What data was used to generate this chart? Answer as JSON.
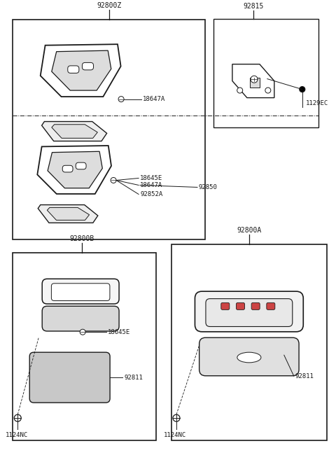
{
  "bg_color": "#ffffff",
  "lc": "#1a1a1a",
  "tc": "#1a1a1a",
  "fs_label": 6.5,
  "fs_title": 7.0,
  "labels": {
    "main_title": "92800Z",
    "part_18645E": "18645E",
    "part_18647A": "18647A",
    "part_92850": "92850",
    "part_92852A": "92852A",
    "part_92800B": "92800B",
    "part_92800A": "92800A",
    "part_92811": "92811",
    "part_1124NC": "1124NC",
    "part_92815": "92815",
    "part_1129EC": "1129EC"
  }
}
